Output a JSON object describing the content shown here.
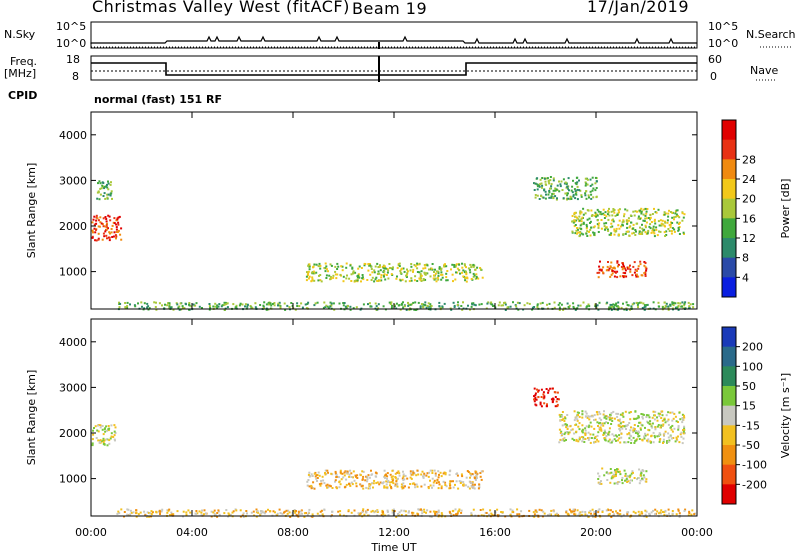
{
  "header": {
    "station": "Christmas Valley West (fitACF)",
    "beam": "Beam 19",
    "date": "17/Jan/2019"
  },
  "strip_labels": {
    "nsky": "N.Sky",
    "nsearch": "N.Search",
    "freq": "Freq.",
    "freq_unit": "[MHz]",
    "nave": "Nave",
    "cpid": "CPID",
    "cpid_value": "normal (fast) 151 RF",
    "noise_ticks_left": [
      "10^5",
      "10^0"
    ],
    "noise_ticks_right": [
      "10^5",
      "10^0"
    ],
    "freq_ticks": [
      "18",
      "8"
    ],
    "nave_ticks": [
      "60",
      "0"
    ]
  },
  "chart_data": [
    {
      "type": "heatmap",
      "name": "power",
      "ylabel": "Slant Range [km]",
      "xlabel": "Time UT",
      "x_ticks": [
        "00:00",
        "04:00",
        "08:00",
        "12:00",
        "16:00",
        "20:00",
        "00:00"
      ],
      "xlim_hours": [
        0,
        24
      ],
      "y_ticks": [
        1000,
        2000,
        3000,
        4000
      ],
      "ylim_km": [
        180,
        4500
      ],
      "colorbar": {
        "label": "Power [dB]",
        "ticks": [
          "4",
          "8",
          "12",
          "16",
          "20",
          "24",
          "28"
        ],
        "colors": [
          "#0a1fe0",
          "#2a4aa8",
          "#2c8a6a",
          "#3fa83c",
          "#a9c83a",
          "#f2c81a",
          "#f08a10",
          "#e83214",
          "#e00000"
        ]
      },
      "regions": [
        {
          "t0": 0.0,
          "t1": 1.2,
          "r0": 1700,
          "r1": 2250,
          "level": 7
        },
        {
          "t0": 0.2,
          "t1": 0.8,
          "r0": 2600,
          "r1": 3100,
          "level": 3
        },
        {
          "t0": 8.5,
          "t1": 15.5,
          "r0": 800,
          "r1": 1200,
          "level": 4
        },
        {
          "t0": 1.0,
          "t1": 24.0,
          "r0": 180,
          "r1": 350,
          "level": 3
        },
        {
          "t0": 17.5,
          "t1": 20.0,
          "r0": 2600,
          "r1": 3100,
          "level": 3
        },
        {
          "t0": 19.0,
          "t1": 23.5,
          "r0": 1800,
          "r1": 2400,
          "level": 4
        },
        {
          "t0": 20.0,
          "t1": 22.0,
          "r0": 900,
          "r1": 1250,
          "level": 7
        }
      ]
    },
    {
      "type": "heatmap",
      "name": "velocity",
      "ylabel": "Slant Range [km]",
      "xlabel": "Time UT",
      "x_ticks": [
        "00:00",
        "04:00",
        "08:00",
        "12:00",
        "16:00",
        "20:00",
        "00:00"
      ],
      "xlim_hours": [
        0,
        24
      ],
      "y_ticks": [
        1000,
        2000,
        3000,
        4000
      ],
      "ylim_km": [
        180,
        4500
      ],
      "colorbar": {
        "label": "Velocity [m s⁻¹]",
        "ticks": [
          "200",
          "100",
          "50",
          "15",
          "-15",
          "-50",
          "-100",
          "-200"
        ],
        "colors": [
          "#1a3ab8",
          "#2a6a8a",
          "#2c8a5a",
          "#7ac83a",
          "#c8c8c0",
          "#f2c020",
          "#f09010",
          "#f05010",
          "#e00000"
        ]
      },
      "regions": [
        {
          "t0": 0.0,
          "t1": 1.0,
          "r0": 1750,
          "r1": 2200,
          "level": 4
        },
        {
          "t0": 8.5,
          "t1": 15.5,
          "r0": 800,
          "r1": 1200,
          "level": 5
        },
        {
          "t0": 1.0,
          "t1": 24.0,
          "r0": 180,
          "r1": 350,
          "level": 5
        },
        {
          "t0": 17.5,
          "t1": 18.5,
          "r0": 2600,
          "r1": 3000,
          "level": 8
        },
        {
          "t0": 18.5,
          "t1": 23.5,
          "r0": 1800,
          "r1": 2500,
          "level": 4
        },
        {
          "t0": 20.0,
          "t1": 22.0,
          "r0": 900,
          "r1": 1250,
          "level": 4
        }
      ]
    }
  ]
}
